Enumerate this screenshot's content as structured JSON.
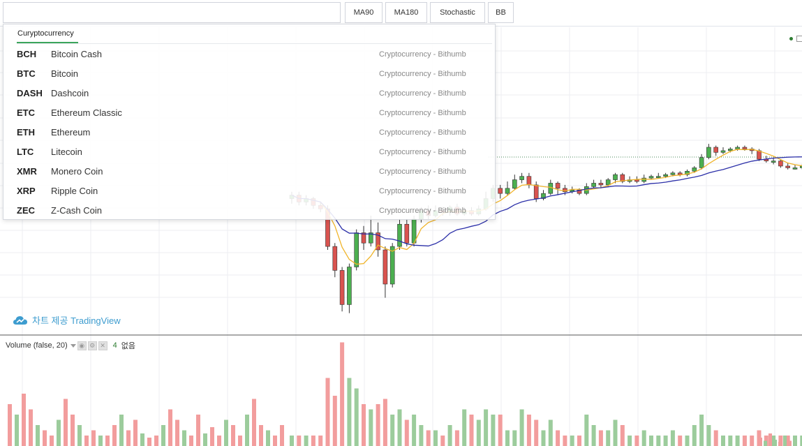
{
  "toolbar": {
    "search_value": "",
    "buttons": [
      "MA90",
      "MA180",
      "Stochastic",
      "BB"
    ]
  },
  "dropdown": {
    "tab_label": "Curyptocurrency",
    "items": [
      {
        "symbol": "BCH",
        "name": "Bitcoin Cash",
        "source": "Cryptocurrency - Bithumb"
      },
      {
        "symbol": "BTC",
        "name": "Bitcoin",
        "source": "Cryptocurrency - Bithumb"
      },
      {
        "symbol": "DASH",
        "name": "Dashcoin",
        "source": "Cryptocurrency - Bithumb"
      },
      {
        "symbol": "ETC",
        "name": "Ethereum Classic",
        "source": "Cryptocurrency - Bithumb"
      },
      {
        "symbol": "ETH",
        "name": "Ethereum",
        "source": "Cryptocurrency - Bithumb"
      },
      {
        "symbol": "LTC",
        "name": "Litecoin",
        "source": "Cryptocurrency - Bithumb"
      },
      {
        "symbol": "XMR",
        "name": "Monero Coin",
        "source": "Cryptocurrency - Bithumb"
      },
      {
        "symbol": "XRP",
        "name": "Ripple Coin",
        "source": "Cryptocurrency - Bithumb"
      },
      {
        "symbol": "ZEC",
        "name": "Z-Cash Coin",
        "source": "Cryptocurrency - Bithumb"
      }
    ]
  },
  "watermark": {
    "text": "차트 제공 TradingView",
    "icon": "cloud-icon",
    "color": "#3d9ccf"
  },
  "volume_legend": {
    "label": "Volume (false, 20)",
    "value": "4",
    "none_text": "없음"
  },
  "colors": {
    "up": "#4caf50",
    "down": "#d9534f",
    "vol_up": "#9ccc9c",
    "vol_down": "#f29d9d",
    "ma_short": "#f0b429",
    "ma_long": "#2b2fa8",
    "accent": "#3ba55c"
  },
  "chart_data": {
    "type": "candlestick",
    "series_count": 2,
    "candles": [
      {
        "o": 0.7,
        "c": 0.72,
        "h": 0.74,
        "l": 0.67,
        "v": 0.1
      },
      {
        "o": 0.72,
        "c": 0.68,
        "h": 0.74,
        "l": 0.66,
        "v": 0.1
      },
      {
        "o": 0.68,
        "c": 0.7,
        "h": 0.72,
        "l": 0.66,
        "v": 0.1
      },
      {
        "o": 0.7,
        "c": 0.66,
        "h": 0.71,
        "l": 0.64,
        "v": 0.1
      },
      {
        "o": 0.66,
        "c": 0.64,
        "h": 0.68,
        "l": 0.62,
        "v": 0.1
      },
      {
        "o": 0.64,
        "c": 0.42,
        "h": 0.66,
        "l": 0.4,
        "v": 0.65
      },
      {
        "o": 0.42,
        "c": 0.28,
        "h": 0.44,
        "l": 0.24,
        "v": 0.48
      },
      {
        "o": 0.28,
        "c": 0.08,
        "h": 0.3,
        "l": 0.04,
        "v": 0.99
      },
      {
        "o": 0.08,
        "c": 0.3,
        "h": 0.32,
        "l": 0.03,
        "v": 0.65
      },
      {
        "o": 0.3,
        "c": 0.5,
        "h": 0.52,
        "l": 0.28,
        "v": 0.55
      },
      {
        "o": 0.5,
        "c": 0.44,
        "h": 0.54,
        "l": 0.4,
        "v": 0.4
      },
      {
        "o": 0.44,
        "c": 0.5,
        "h": 0.6,
        "l": 0.42,
        "v": 0.35
      },
      {
        "o": 0.5,
        "c": 0.4,
        "h": 0.56,
        "l": 0.36,
        "v": 0.4
      },
      {
        "o": 0.4,
        "c": 0.2,
        "h": 0.42,
        "l": 0.12,
        "v": 0.45
      },
      {
        "o": 0.2,
        "c": 0.42,
        "h": 0.44,
        "l": 0.18,
        "v": 0.3
      },
      {
        "o": 0.42,
        "c": 0.55,
        "h": 0.58,
        "l": 0.4,
        "v": 0.35
      },
      {
        "o": 0.55,
        "c": 0.44,
        "h": 0.58,
        "l": 0.42,
        "v": 0.25
      },
      {
        "o": 0.44,
        "c": 0.58,
        "h": 0.6,
        "l": 0.42,
        "v": 0.3
      },
      {
        "o": 0.58,
        "c": 0.63,
        "h": 0.65,
        "l": 0.56,
        "v": 0.2
      },
      {
        "o": 0.63,
        "c": 0.6,
        "h": 0.66,
        "l": 0.58,
        "v": 0.15
      },
      {
        "o": 0.6,
        "c": 0.63,
        "h": 0.66,
        "l": 0.59,
        "v": 0.15
      },
      {
        "o": 0.63,
        "c": 0.62,
        "h": 0.65,
        "l": 0.6,
        "v": 0.1
      },
      {
        "o": 0.62,
        "c": 0.65,
        "h": 0.66,
        "l": 0.6,
        "v": 0.2
      },
      {
        "o": 0.65,
        "c": 0.61,
        "h": 0.67,
        "l": 0.6,
        "v": 0.15
      },
      {
        "o": 0.61,
        "c": 0.63,
        "h": 0.65,
        "l": 0.6,
        "v": 0.35
      },
      {
        "o": 0.63,
        "c": 0.61,
        "h": 0.65,
        "l": 0.6,
        "v": 0.3
      },
      {
        "o": 0.61,
        "c": 0.64,
        "h": 0.66,
        "l": 0.6,
        "v": 0.25
      },
      {
        "o": 0.64,
        "c": 0.7,
        "h": 0.74,
        "l": 0.63,
        "v": 0.35
      },
      {
        "o": 0.7,
        "c": 0.76,
        "h": 0.78,
        "l": 0.68,
        "v": 0.3
      },
      {
        "o": 0.76,
        "c": 0.73,
        "h": 0.78,
        "l": 0.7,
        "v": 0.3
      },
      {
        "o": 0.73,
        "c": 0.76,
        "h": 0.8,
        "l": 0.72,
        "v": 0.15
      },
      {
        "o": 0.76,
        "c": 0.81,
        "h": 0.84,
        "l": 0.75,
        "v": 0.15
      },
      {
        "o": 0.81,
        "c": 0.83,
        "h": 0.85,
        "l": 0.79,
        "v": 0.35
      },
      {
        "o": 0.83,
        "c": 0.78,
        "h": 0.85,
        "l": 0.76,
        "v": 0.3
      },
      {
        "o": 0.78,
        "c": 0.7,
        "h": 0.8,
        "l": 0.68,
        "v": 0.25
      },
      {
        "o": 0.7,
        "c": 0.73,
        "h": 0.75,
        "l": 0.69,
        "v": 0.15
      },
      {
        "o": 0.73,
        "c": 0.79,
        "h": 0.81,
        "l": 0.72,
        "v": 0.25
      },
      {
        "o": 0.79,
        "c": 0.76,
        "h": 0.8,
        "l": 0.72,
        "v": 0.15
      },
      {
        "o": 0.76,
        "c": 0.74,
        "h": 0.78,
        "l": 0.72,
        "v": 0.1
      },
      {
        "o": 0.74,
        "c": 0.75,
        "h": 0.77,
        "l": 0.73,
        "v": 0.1
      },
      {
        "o": 0.75,
        "c": 0.73,
        "h": 0.76,
        "l": 0.72,
        "v": 0.1
      },
      {
        "o": 0.73,
        "c": 0.77,
        "h": 0.79,
        "l": 0.72,
        "v": 0.3
      },
      {
        "o": 0.77,
        "c": 0.79,
        "h": 0.81,
        "l": 0.76,
        "v": 0.2
      },
      {
        "o": 0.79,
        "c": 0.78,
        "h": 0.81,
        "l": 0.76,
        "v": 0.15
      },
      {
        "o": 0.78,
        "c": 0.81,
        "h": 0.82,
        "l": 0.77,
        "v": 0.15
      },
      {
        "o": 0.81,
        "c": 0.84,
        "h": 0.85,
        "l": 0.79,
        "v": 0.25
      },
      {
        "o": 0.84,
        "c": 0.8,
        "h": 0.85,
        "l": 0.79,
        "v": 0.2
      },
      {
        "o": 0.8,
        "c": 0.81,
        "h": 0.83,
        "l": 0.79,
        "v": 0.1
      },
      {
        "o": 0.81,
        "c": 0.8,
        "h": 0.83,
        "l": 0.79,
        "v": 0.1
      },
      {
        "o": 0.8,
        "c": 0.82,
        "h": 0.84,
        "l": 0.79,
        "v": 0.15
      },
      {
        "o": 0.82,
        "c": 0.83,
        "h": 0.84,
        "l": 0.81,
        "v": 0.1
      },
      {
        "o": 0.83,
        "c": 0.83,
        "h": 0.85,
        "l": 0.82,
        "v": 0.1
      },
      {
        "o": 0.83,
        "c": 0.84,
        "h": 0.85,
        "l": 0.82,
        "v": 0.1
      },
      {
        "o": 0.84,
        "c": 0.85,
        "h": 0.86,
        "l": 0.83,
        "v": 0.15
      },
      {
        "o": 0.85,
        "c": 0.84,
        "h": 0.86,
        "l": 0.83,
        "v": 0.1
      },
      {
        "o": 0.84,
        "c": 0.86,
        "h": 0.87,
        "l": 0.83,
        "v": 0.1
      },
      {
        "o": 0.86,
        "c": 0.88,
        "h": 0.89,
        "l": 0.85,
        "v": 0.2
      },
      {
        "o": 0.88,
        "c": 0.94,
        "h": 0.96,
        "l": 0.87,
        "v": 0.3
      },
      {
        "o": 0.94,
        "c": 1.0,
        "h": 1.02,
        "l": 0.93,
        "v": 0.2
      },
      {
        "o": 1.0,
        "c": 0.97,
        "h": 1.01,
        "l": 0.95,
        "v": 0.15
      },
      {
        "o": 0.97,
        "c": 0.98,
        "h": 1.0,
        "l": 0.96,
        "v": 0.1
      },
      {
        "o": 0.98,
        "c": 0.99,
        "h": 1.0,
        "l": 0.97,
        "v": 0.1
      },
      {
        "o": 0.99,
        "c": 1.0,
        "h": 1.01,
        "l": 0.98,
        "v": 0.1
      },
      {
        "o": 1.0,
        "c": 0.99,
        "h": 1.01,
        "l": 0.98,
        "v": 0.1
      },
      {
        "o": 0.99,
        "c": 0.98,
        "h": 1.0,
        "l": 0.96,
        "v": 0.1
      },
      {
        "o": 0.98,
        "c": 0.93,
        "h": 0.99,
        "l": 0.92,
        "v": 0.15
      },
      {
        "o": 0.93,
        "c": 0.92,
        "h": 0.95,
        "l": 0.91,
        "v": 0.1
      },
      {
        "o": 0.92,
        "c": 0.92,
        "h": 0.94,
        "l": 0.9,
        "v": 0.1
      },
      {
        "o": 0.92,
        "c": 0.89,
        "h": 0.93,
        "l": 0.88,
        "v": 0.1
      },
      {
        "o": 0.89,
        "c": 0.88,
        "h": 0.91,
        "l": 0.87,
        "v": 0.1
      },
      {
        "o": 0.88,
        "c": 0.88,
        "h": 0.9,
        "l": 0.87,
        "v": 0.1
      },
      {
        "o": 0.88,
        "c": 0.89,
        "h": 0.9,
        "l": 0.87,
        "v": 0.1
      },
      {
        "o": 0.89,
        "c": 0.91,
        "h": 0.93,
        "l": 0.88,
        "v": 0.1
      }
    ]
  }
}
